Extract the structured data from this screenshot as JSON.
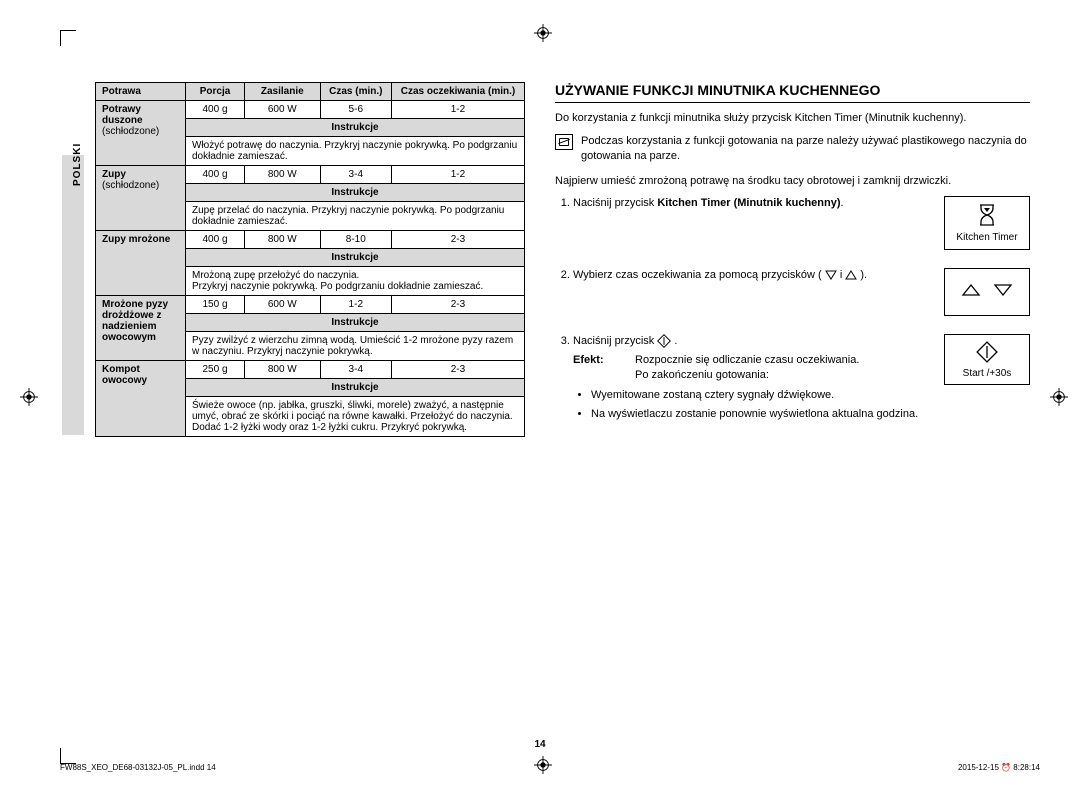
{
  "side_label": "POLSKI",
  "table": {
    "headers": [
      "Potrawa",
      "Porcja",
      "Zasilanie",
      "Czas (min.)",
      "Czas oczekiwania (min.)"
    ],
    "instr_label": "Instrukcje",
    "rows": [
      {
        "name": "Potrawy duszone",
        "sub": "(schłodzone)",
        "porcja": "400 g",
        "zasilanie": "600 W",
        "czas": "5-6",
        "czek": "1-2",
        "instr": "Włożyć potrawę do naczynia. Przykryj naczynie pokrywką. Po podgrzaniu dokładnie zamieszać."
      },
      {
        "name": "Zupy",
        "sub": "(schłodzone)",
        "porcja": "400 g",
        "zasilanie": "800 W",
        "czas": "3-4",
        "czek": "1-2",
        "instr": "Zupę przelać do naczynia. Przykryj naczynie pokrywką. Po podgrzaniu dokładnie zamieszać."
      },
      {
        "name": "Zupy mrożone",
        "sub": "",
        "porcja": "400 g",
        "zasilanie": "800 W",
        "czas": "8-10",
        "czek": "2-3",
        "instr": "Mrożoną zupę przełożyć do naczynia.\nPrzykryj naczynie pokrywką. Po podgrzaniu dokładnie zamieszać."
      },
      {
        "name": "Mrożone pyzy drożdżowe z nadzieniem owocowym",
        "sub": "",
        "porcja": "150 g",
        "zasilanie": "600 W",
        "czas": "1-2",
        "czek": "2-3",
        "instr": "Pyzy zwilżyć z wierzchu zimną wodą. Umieścić 1-2 mrożone pyzy razem w naczyniu. Przykryj naczynie pokrywką."
      },
      {
        "name": "Kompot owocowy",
        "sub": "",
        "porcja": "250 g",
        "zasilanie": "800 W",
        "czas": "3-4",
        "czek": "2-3",
        "instr": "Świeże owoce (np. jabłka, gruszki, śliwki, morele) zważyć, a następnie umyć, obrać ze skórki i pociąć na równe kawałki. Przełożyć do naczynia.\nDodać 1-2 łyżki wody oraz 1-2 łyżki cukru. Przykryć pokrywką."
      }
    ]
  },
  "right": {
    "title": "UŻYWANIE FUNKCJI MINUTNIKA KUCHENNEGO",
    "intro": "Do korzystania z funkcji minutnika służy przycisk Kitchen Timer (Minutnik kuchenny).",
    "note": "Podczas korzystania z funkcji gotowania na parze należy używać plastikowego naczynia do gotowania na parze.",
    "pre": "Najpierw umieść zmrożoną potrawę na środku tacy obrotowej i zamknij drzwiczki.",
    "steps": {
      "s1_a": "Naciśnij przycisk ",
      "s1_b": "Kitchen Timer (Minutnik kuchenny)",
      "s1_c": ".",
      "s2": "Wybierz czas oczekiwania za pomocą przycisków ( ",
      "s2_end": " ).",
      "s2_and": " i ",
      "s3": "Naciśnij przycisk ",
      "s3_end": "."
    },
    "buttons": {
      "b1": "Kitchen Timer",
      "b3": "Start /+30s"
    },
    "efekt_label": "Efekt:",
    "efekt_body": "Rozpocznie się odliczanie czasu oczekiwania.\nPo zakończeniu gotowania:",
    "bullets": [
      "Wyemitowane zostaną cztery sygnały dźwiękowe.",
      "Na wyświetlaczu zostanie ponownie wyświetlona aktualna godzina."
    ]
  },
  "page_num": "14",
  "footer_l": "FW88S_XEO_DE68-03132J-05_PL.indd   14",
  "footer_r": "2015-12-15   ⏰ 8:28:14",
  "colors": {
    "grey": "#d9d9d9",
    "text": "#000000"
  }
}
